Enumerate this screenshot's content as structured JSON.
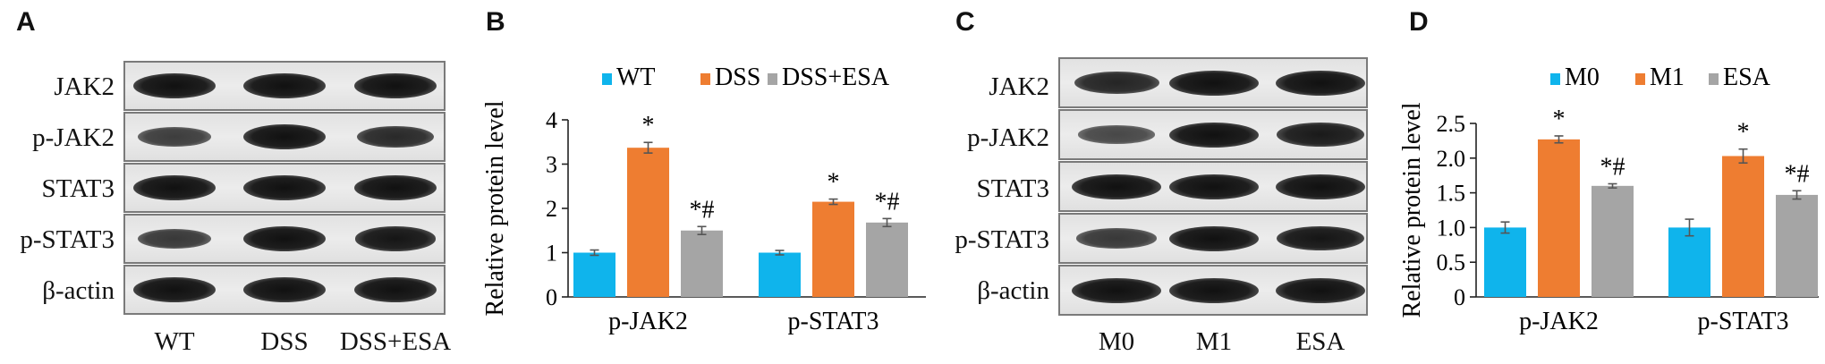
{
  "panels": {
    "a": {
      "letter": "A",
      "rows": [
        "JAK2",
        "p-JAK2",
        "STAT3",
        "p-STAT3",
        "β-actin"
      ],
      "lanes": [
        "WT",
        "DSS",
        "DSS+ESA"
      ]
    },
    "b": {
      "letter": "B"
    },
    "c": {
      "letter": "C",
      "rows": [
        "JAK2",
        "p-JAK2",
        "STAT3",
        "p-STAT3",
        "β-actin"
      ],
      "lanes": [
        "M0",
        "M1",
        "ESA"
      ]
    },
    "d": {
      "letter": "D"
    }
  },
  "colors": {
    "series1": "#0fb4ec",
    "series2": "#ee7d31",
    "series3": "#a5a5a5"
  },
  "blot_intensity": {
    "a": [
      [
        1.0,
        1.0,
        1.0
      ],
      [
        0.55,
        1.0,
        0.75
      ],
      [
        1.0,
        1.0,
        1.0
      ],
      [
        0.6,
        1.0,
        0.95
      ],
      [
        1.0,
        1.0,
        1.0
      ]
    ],
    "c": [
      [
        0.8,
        1.0,
        1.0
      ],
      [
        0.45,
        1.0,
        0.9
      ],
      [
        1.0,
        1.0,
        1.0
      ],
      [
        0.6,
        1.0,
        0.95
      ],
      [
        1.0,
        1.0,
        1.0
      ]
    ]
  },
  "chart_data": [
    {
      "type": "bar",
      "panel": "B",
      "categories": [
        "p-JAK2",
        "p-STAT3"
      ],
      "series": [
        {
          "name": "WT",
          "values": [
            1.0,
            1.0
          ],
          "errors": [
            0.06,
            0.05
          ]
        },
        {
          "name": "DSS",
          "values": [
            3.37,
            2.15
          ],
          "errors": [
            0.12,
            0.06
          ]
        },
        {
          "name": "DSS+ESA",
          "values": [
            1.5,
            1.68
          ],
          "errors": [
            0.09,
            0.09
          ]
        }
      ],
      "annotations": [
        [
          "",
          ""
        ],
        [
          "*",
          "*"
        ],
        [
          "*#",
          "*#"
        ]
      ],
      "xlabel": "",
      "ylabel": "Relative protein level",
      "ylim": [
        0,
        4
      ],
      "yticks": [
        "0",
        "1",
        "2",
        "3",
        "4"
      ],
      "legend": "top",
      "grid": false
    },
    {
      "type": "bar",
      "panel": "D",
      "categories": [
        "p-JAK2",
        "p-STAT3"
      ],
      "series": [
        {
          "name": "M0",
          "values": [
            1.0,
            1.0
          ],
          "errors": [
            0.08,
            0.12
          ]
        },
        {
          "name": "M1",
          "values": [
            2.27,
            2.03
          ],
          "errors": [
            0.05,
            0.1
          ]
        },
        {
          "name": "ESA",
          "values": [
            1.6,
            1.47
          ],
          "errors": [
            0.03,
            0.06
          ]
        }
      ],
      "annotations": [
        [
          "",
          ""
        ],
        [
          "*",
          "*"
        ],
        [
          "*#",
          "*#"
        ]
      ],
      "xlabel": "",
      "ylabel": "Relative protein level",
      "ylim": [
        0,
        2.5
      ],
      "yticks": [
        "0",
        "0.5",
        "1.0",
        "1.5",
        "2.0",
        "2.5"
      ],
      "legend": "top",
      "grid": false
    }
  ]
}
